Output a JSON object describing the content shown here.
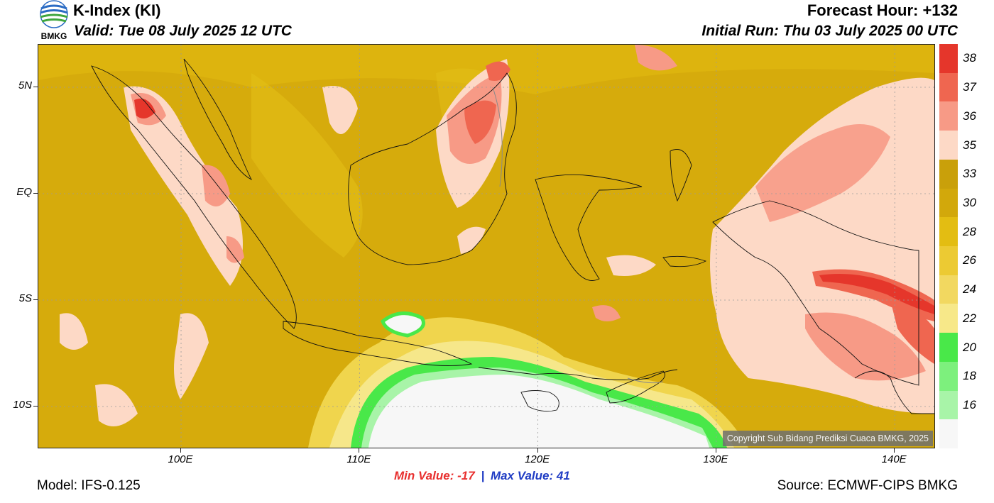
{
  "header": {
    "logo_text": "BMKG",
    "title": "K-Index (KI)",
    "valid": "Valid: Tue 08 July 2025 12 UTC",
    "forecast_hour": "Forecast Hour: +132",
    "initial_run": "Initial Run: Thu 03 July 2025 00 UTC"
  },
  "map": {
    "lat_labels": [
      "5N",
      "EQ",
      "5S",
      "10S"
    ],
    "lon_labels": [
      "100E",
      "110E",
      "120E",
      "130E",
      "140E"
    ],
    "lat_values": [
      5,
      0,
      -5,
      -10
    ],
    "lon_values": [
      100,
      110,
      120,
      130,
      140
    ],
    "extent": {
      "lon_min": 92,
      "lon_max": 142.3,
      "lat_min": -12,
      "lat_max": 7
    },
    "copyright": "Copyright Sub Bidang Prediksi Cuaca BMKG, 2025"
  },
  "colorbar": {
    "labels": [
      "38",
      "37",
      "36",
      "35",
      "33",
      "30",
      "28",
      "26",
      "24",
      "22",
      "20",
      "18",
      "16"
    ],
    "colors": [
      "#e5362b",
      "#ef6650",
      "#f79a86",
      "#fdd9c6",
      "#c9a00a",
      "#d2a80b",
      "#e3bd12",
      "#ecca33",
      "#f2d860",
      "#f7e889",
      "#49e849",
      "#7df07d",
      "#a8f4a8",
      "#f7f7f7"
    ]
  },
  "stats": {
    "min_label": "Min Value:",
    "min_value": "-17",
    "separator": "|",
    "max_label": "Max Value:",
    "max_value": "41"
  },
  "footer": {
    "model": "Model: IFS-0.125",
    "source": "Source: ECMWF-CIPS BMKG"
  }
}
